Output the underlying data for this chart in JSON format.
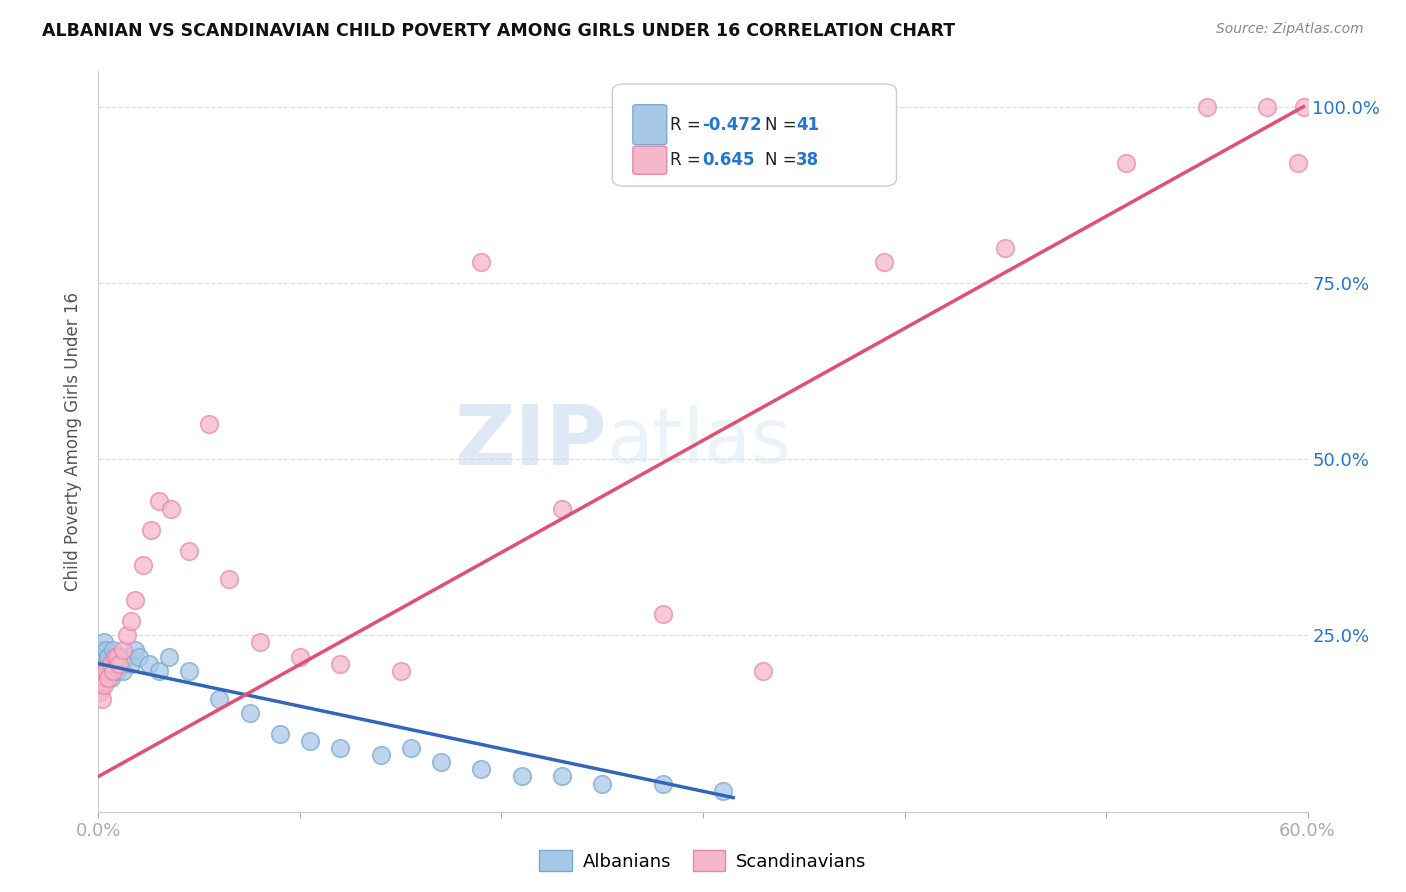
{
  "title": "ALBANIAN VS SCANDINAVIAN CHILD POVERTY AMONG GIRLS UNDER 16 CORRELATION CHART",
  "source": "Source: ZipAtlas.com",
  "ylabel": "Child Poverty Among Girls Under 16",
  "xlim": [
    0.0,
    0.6
  ],
  "ylim": [
    0.0,
    1.05
  ],
  "albanian_R": -0.472,
  "albanian_N": 41,
  "scandinavian_R": 0.645,
  "scandinavian_N": 38,
  "albanian_color": "#a8c8e8",
  "albanian_edge_color": "#7aaad0",
  "scandinavian_color": "#f5b8cb",
  "scandinavian_edge_color": "#e888a8",
  "albanian_line_color": "#3366bb",
  "scandinavian_line_color": "#e05070",
  "legend_label_albanian": "Albanians",
  "legend_label_scandinavian": "Scandinavians",
  "watermark_zip": "ZIP",
  "watermark_atlas": "atlas",
  "background_color": "#ffffff",
  "right_tick_color": "#2277cc",
  "albanian_x": [
    0.001,
    0.001,
    0.002,
    0.002,
    0.003,
    0.003,
    0.003,
    0.004,
    0.004,
    0.005,
    0.005,
    0.006,
    0.006,
    0.007,
    0.008,
    0.009,
    0.01,
    0.011,
    0.012,
    0.014,
    0.016,
    0.018,
    0.02,
    0.025,
    0.03,
    0.035,
    0.045,
    0.06,
    0.075,
    0.09,
    0.105,
    0.12,
    0.14,
    0.155,
    0.17,
    0.19,
    0.21,
    0.23,
    0.25,
    0.28,
    0.31
  ],
  "albanian_y": [
    0.18,
    0.22,
    0.2,
    0.23,
    0.19,
    0.22,
    0.24,
    0.21,
    0.23,
    0.2,
    0.22,
    0.21,
    0.19,
    0.23,
    0.22,
    0.2,
    0.22,
    0.21,
    0.2,
    0.22,
    0.21,
    0.23,
    0.22,
    0.21,
    0.2,
    0.22,
    0.2,
    0.16,
    0.14,
    0.11,
    0.1,
    0.09,
    0.08,
    0.09,
    0.07,
    0.06,
    0.05,
    0.05,
    0.04,
    0.04,
    0.03
  ],
  "scandinavian_x": [
    0.001,
    0.002,
    0.002,
    0.003,
    0.003,
    0.004,
    0.005,
    0.006,
    0.007,
    0.008,
    0.009,
    0.01,
    0.012,
    0.014,
    0.016,
    0.018,
    0.022,
    0.026,
    0.03,
    0.036,
    0.045,
    0.055,
    0.065,
    0.08,
    0.1,
    0.12,
    0.15,
    0.19,
    0.23,
    0.28,
    0.33,
    0.39,
    0.45,
    0.51,
    0.55,
    0.58,
    0.595,
    0.598
  ],
  "scandinavian_y": [
    0.17,
    0.18,
    0.16,
    0.19,
    0.18,
    0.2,
    0.19,
    0.21,
    0.2,
    0.22,
    0.22,
    0.21,
    0.23,
    0.25,
    0.27,
    0.3,
    0.35,
    0.4,
    0.44,
    0.43,
    0.37,
    0.55,
    0.33,
    0.24,
    0.22,
    0.21,
    0.2,
    0.78,
    0.43,
    0.28,
    0.2,
    0.78,
    0.8,
    0.92,
    1.0,
    1.0,
    0.92,
    1.0
  ],
  "alb_trend": [
    0.0,
    0.21,
    0.315,
    0.02
  ],
  "scand_trend": [
    0.0,
    0.05,
    0.598,
    1.0
  ]
}
